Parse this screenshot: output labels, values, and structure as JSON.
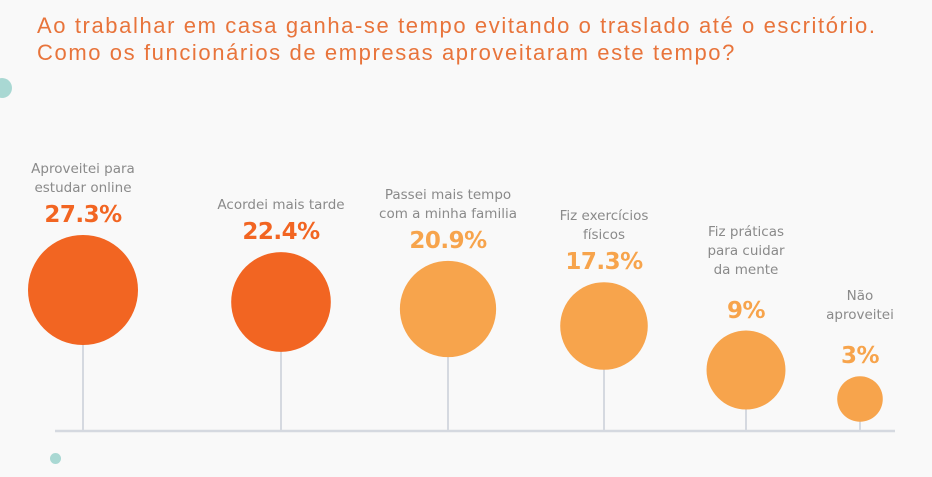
{
  "chart_data": {
    "type": "bubble-lollipop",
    "title": "Ao trabalhar em casa ganha-se tempo evitando o traslado até o escritório. Como os funcionários de empresas aproveitaram este tempo?",
    "unit": "%",
    "categories": [
      "Aproveitei para estudar online",
      "Acordei mais tarde",
      "Passei mais tempo com a minha familia",
      "Fiz exercícios físicos",
      "Fiz práticas para cuidar da mente",
      "Não aproveitei"
    ],
    "label_lines": [
      [
        "Aproveitei para",
        "estudar online"
      ],
      [
        "Acordei mais tarde"
      ],
      [
        "Passei mais tempo",
        "com a minha familia"
      ],
      [
        "Fiz exercícios",
        "físicos"
      ],
      [
        "Fiz práticas",
        "para cuidar",
        "da mente"
      ],
      [
        "Não",
        "aproveitei"
      ]
    ],
    "values": [
      27.3,
      22.4,
      20.9,
      17.3,
      9,
      3
    ],
    "value_labels": [
      "27.3%",
      "22.4%",
      "20.9%",
      "17.3%",
      "9%",
      "3%"
    ],
    "colors": [
      "#f26522",
      "#f26522",
      "#f7a44c",
      "#f7a44c",
      "#f7a44c",
      "#f7a44c"
    ]
  },
  "colors": {
    "title": "#e8743b",
    "axis": "#d5d9e0",
    "label": "#8a8a8a"
  }
}
